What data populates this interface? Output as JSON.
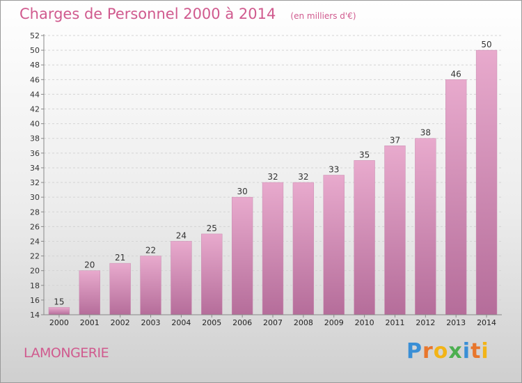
{
  "header": {
    "title": "Charges de Personnel 2000 à 2014",
    "subtitle": "(en milliers d'€)"
  },
  "footer": {
    "commune": "LAMONGERIE",
    "logo_text": "Proxiti"
  },
  "colors": {
    "accent": "#d05a8e",
    "bar_top": "#e6a6cb",
    "bar_bottom": "#b86f9c"
  },
  "chart_data": {
    "type": "bar",
    "categories": [
      "2000",
      "2001",
      "2002",
      "2003",
      "2004",
      "2005",
      "2006",
      "2007",
      "2008",
      "2009",
      "2010",
      "2011",
      "2012",
      "2013",
      "2014"
    ],
    "values": [
      15,
      20,
      21,
      22,
      24,
      25,
      30,
      32,
      32,
      33,
      35,
      37,
      38,
      46,
      50
    ],
    "title": "Charges de Personnel 2000 à 2014",
    "subtitle": "(en milliers d'€)",
    "ylim": [
      14,
      52
    ],
    "yticks": [
      14,
      16,
      18,
      20,
      22,
      24,
      26,
      28,
      30,
      32,
      34,
      36,
      38,
      40,
      42,
      44,
      46,
      48,
      50,
      52
    ],
    "grid": true
  }
}
